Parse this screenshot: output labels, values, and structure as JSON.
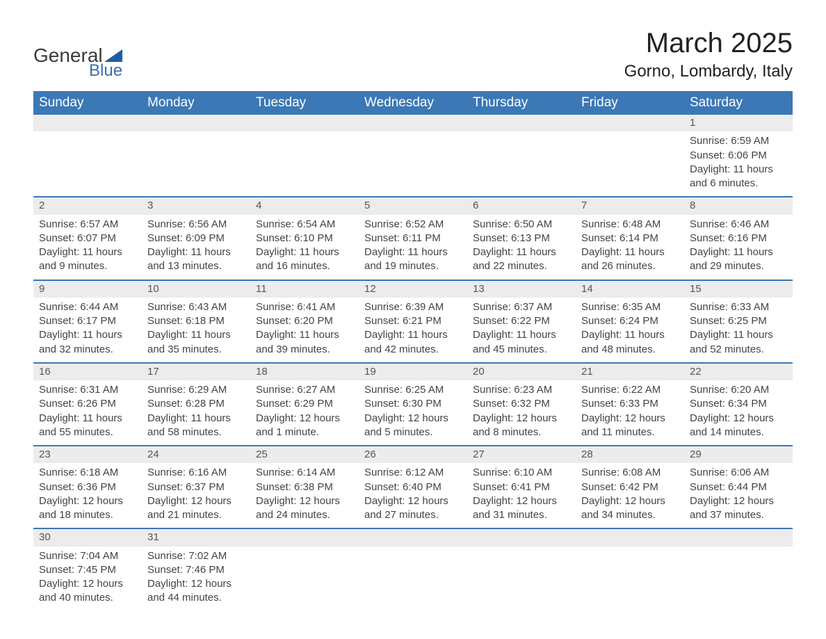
{
  "brand": {
    "name1": "General",
    "name2": "Blue",
    "logo_color": "#1e5fa0"
  },
  "title": {
    "month_year": "March 2025",
    "location": "Gorno, Lombardy, Italy"
  },
  "colors": {
    "header_bg": "#3b78b5",
    "header_text": "#ffffff",
    "row_divider": "#3b78b5",
    "daynum_bg": "#ececec",
    "body_text": "#444444",
    "page_bg": "#ffffff"
  },
  "typography": {
    "header_fontsize": 19,
    "body_fontsize": 15,
    "title_fontsize": 40,
    "subtitle_fontsize": 24
  },
  "layout": {
    "columns": 7,
    "rows": 6,
    "first_day_column_index": 6
  },
  "weekdays": [
    "Sunday",
    "Monday",
    "Tuesday",
    "Wednesday",
    "Thursday",
    "Friday",
    "Saturday"
  ],
  "days": [
    {
      "n": "1",
      "sunrise": "Sunrise: 6:59 AM",
      "sunset": "Sunset: 6:06 PM",
      "daylight": "Daylight: 11 hours and 6 minutes."
    },
    {
      "n": "2",
      "sunrise": "Sunrise: 6:57 AM",
      "sunset": "Sunset: 6:07 PM",
      "daylight": "Daylight: 11 hours and 9 minutes."
    },
    {
      "n": "3",
      "sunrise": "Sunrise: 6:56 AM",
      "sunset": "Sunset: 6:09 PM",
      "daylight": "Daylight: 11 hours and 13 minutes."
    },
    {
      "n": "4",
      "sunrise": "Sunrise: 6:54 AM",
      "sunset": "Sunset: 6:10 PM",
      "daylight": "Daylight: 11 hours and 16 minutes."
    },
    {
      "n": "5",
      "sunrise": "Sunrise: 6:52 AM",
      "sunset": "Sunset: 6:11 PM",
      "daylight": "Daylight: 11 hours and 19 minutes."
    },
    {
      "n": "6",
      "sunrise": "Sunrise: 6:50 AM",
      "sunset": "Sunset: 6:13 PM",
      "daylight": "Daylight: 11 hours and 22 minutes."
    },
    {
      "n": "7",
      "sunrise": "Sunrise: 6:48 AM",
      "sunset": "Sunset: 6:14 PM",
      "daylight": "Daylight: 11 hours and 26 minutes."
    },
    {
      "n": "8",
      "sunrise": "Sunrise: 6:46 AM",
      "sunset": "Sunset: 6:16 PM",
      "daylight": "Daylight: 11 hours and 29 minutes."
    },
    {
      "n": "9",
      "sunrise": "Sunrise: 6:44 AM",
      "sunset": "Sunset: 6:17 PM",
      "daylight": "Daylight: 11 hours and 32 minutes."
    },
    {
      "n": "10",
      "sunrise": "Sunrise: 6:43 AM",
      "sunset": "Sunset: 6:18 PM",
      "daylight": "Daylight: 11 hours and 35 minutes."
    },
    {
      "n": "11",
      "sunrise": "Sunrise: 6:41 AM",
      "sunset": "Sunset: 6:20 PM",
      "daylight": "Daylight: 11 hours and 39 minutes."
    },
    {
      "n": "12",
      "sunrise": "Sunrise: 6:39 AM",
      "sunset": "Sunset: 6:21 PM",
      "daylight": "Daylight: 11 hours and 42 minutes."
    },
    {
      "n": "13",
      "sunrise": "Sunrise: 6:37 AM",
      "sunset": "Sunset: 6:22 PM",
      "daylight": "Daylight: 11 hours and 45 minutes."
    },
    {
      "n": "14",
      "sunrise": "Sunrise: 6:35 AM",
      "sunset": "Sunset: 6:24 PM",
      "daylight": "Daylight: 11 hours and 48 minutes."
    },
    {
      "n": "15",
      "sunrise": "Sunrise: 6:33 AM",
      "sunset": "Sunset: 6:25 PM",
      "daylight": "Daylight: 11 hours and 52 minutes."
    },
    {
      "n": "16",
      "sunrise": "Sunrise: 6:31 AM",
      "sunset": "Sunset: 6:26 PM",
      "daylight": "Daylight: 11 hours and 55 minutes."
    },
    {
      "n": "17",
      "sunrise": "Sunrise: 6:29 AM",
      "sunset": "Sunset: 6:28 PM",
      "daylight": "Daylight: 11 hours and 58 minutes."
    },
    {
      "n": "18",
      "sunrise": "Sunrise: 6:27 AM",
      "sunset": "Sunset: 6:29 PM",
      "daylight": "Daylight: 12 hours and 1 minute."
    },
    {
      "n": "19",
      "sunrise": "Sunrise: 6:25 AM",
      "sunset": "Sunset: 6:30 PM",
      "daylight": "Daylight: 12 hours and 5 minutes."
    },
    {
      "n": "20",
      "sunrise": "Sunrise: 6:23 AM",
      "sunset": "Sunset: 6:32 PM",
      "daylight": "Daylight: 12 hours and 8 minutes."
    },
    {
      "n": "21",
      "sunrise": "Sunrise: 6:22 AM",
      "sunset": "Sunset: 6:33 PM",
      "daylight": "Daylight: 12 hours and 11 minutes."
    },
    {
      "n": "22",
      "sunrise": "Sunrise: 6:20 AM",
      "sunset": "Sunset: 6:34 PM",
      "daylight": "Daylight: 12 hours and 14 minutes."
    },
    {
      "n": "23",
      "sunrise": "Sunrise: 6:18 AM",
      "sunset": "Sunset: 6:36 PM",
      "daylight": "Daylight: 12 hours and 18 minutes."
    },
    {
      "n": "24",
      "sunrise": "Sunrise: 6:16 AM",
      "sunset": "Sunset: 6:37 PM",
      "daylight": "Daylight: 12 hours and 21 minutes."
    },
    {
      "n": "25",
      "sunrise": "Sunrise: 6:14 AM",
      "sunset": "Sunset: 6:38 PM",
      "daylight": "Daylight: 12 hours and 24 minutes."
    },
    {
      "n": "26",
      "sunrise": "Sunrise: 6:12 AM",
      "sunset": "Sunset: 6:40 PM",
      "daylight": "Daylight: 12 hours and 27 minutes."
    },
    {
      "n": "27",
      "sunrise": "Sunrise: 6:10 AM",
      "sunset": "Sunset: 6:41 PM",
      "daylight": "Daylight: 12 hours and 31 minutes."
    },
    {
      "n": "28",
      "sunrise": "Sunrise: 6:08 AM",
      "sunset": "Sunset: 6:42 PM",
      "daylight": "Daylight: 12 hours and 34 minutes."
    },
    {
      "n": "29",
      "sunrise": "Sunrise: 6:06 AM",
      "sunset": "Sunset: 6:44 PM",
      "daylight": "Daylight: 12 hours and 37 minutes."
    },
    {
      "n": "30",
      "sunrise": "Sunrise: 7:04 AM",
      "sunset": "Sunset: 7:45 PM",
      "daylight": "Daylight: 12 hours and 40 minutes."
    },
    {
      "n": "31",
      "sunrise": "Sunrise: 7:02 AM",
      "sunset": "Sunset: 7:46 PM",
      "daylight": "Daylight: 12 hours and 44 minutes."
    }
  ]
}
